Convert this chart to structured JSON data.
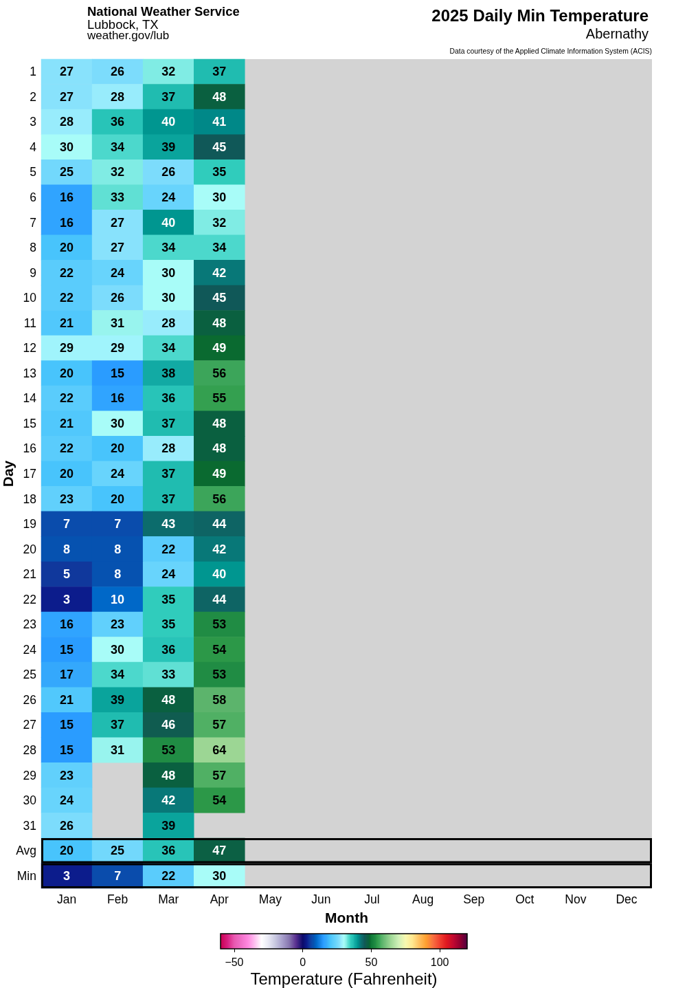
{
  "chart_data": {
    "type": "heatmap",
    "title": "2025 Daily Min Temperature",
    "subtitle": "Abernathy",
    "annotations": [
      "National Weather Service",
      "Lubbock, TX",
      "weather.gov/lub",
      "Data courtesy of the Applied Climate Information System (ACIS)"
    ],
    "xlabel": "Month",
    "ylabel": "Day",
    "clabel": "Temperature (Fahrenheit)",
    "categories": [
      "Jan",
      "Feb",
      "Mar",
      "Apr",
      "May",
      "Jun",
      "Jul",
      "Aug",
      "Sep",
      "Oct",
      "Nov",
      "Dec"
    ],
    "y_categories": [
      "1",
      "2",
      "3",
      "4",
      "5",
      "6",
      "7",
      "8",
      "9",
      "10",
      "11",
      "12",
      "13",
      "14",
      "15",
      "16",
      "17",
      "18",
      "19",
      "20",
      "21",
      "22",
      "23",
      "24",
      "25",
      "26",
      "27",
      "28",
      "29",
      "30",
      "31",
      "Avg",
      "Min"
    ],
    "cells": [
      [
        27,
        26,
        32,
        37,
        null,
        null,
        null,
        null,
        null,
        null,
        null,
        null
      ],
      [
        27,
        28,
        37,
        48,
        null,
        null,
        null,
        null,
        null,
        null,
        null,
        null
      ],
      [
        28,
        36,
        40,
        41,
        null,
        null,
        null,
        null,
        null,
        null,
        null,
        null
      ],
      [
        30,
        34,
        39,
        45,
        null,
        null,
        null,
        null,
        null,
        null,
        null,
        null
      ],
      [
        25,
        32,
        26,
        35,
        null,
        null,
        null,
        null,
        null,
        null,
        null,
        null
      ],
      [
        16,
        33,
        24,
        30,
        null,
        null,
        null,
        null,
        null,
        null,
        null,
        null
      ],
      [
        16,
        27,
        40,
        32,
        null,
        null,
        null,
        null,
        null,
        null,
        null,
        null
      ],
      [
        20,
        27,
        34,
        34,
        null,
        null,
        null,
        null,
        null,
        null,
        null,
        null
      ],
      [
        22,
        24,
        30,
        42,
        null,
        null,
        null,
        null,
        null,
        null,
        null,
        null
      ],
      [
        22,
        26,
        30,
        45,
        null,
        null,
        null,
        null,
        null,
        null,
        null,
        null
      ],
      [
        21,
        31,
        28,
        48,
        null,
        null,
        null,
        null,
        null,
        null,
        null,
        null
      ],
      [
        29,
        29,
        34,
        49,
        null,
        null,
        null,
        null,
        null,
        null,
        null,
        null
      ],
      [
        20,
        15,
        38,
        56,
        null,
        null,
        null,
        null,
        null,
        null,
        null,
        null
      ],
      [
        22,
        16,
        36,
        55,
        null,
        null,
        null,
        null,
        null,
        null,
        null,
        null
      ],
      [
        21,
        30,
        37,
        48,
        null,
        null,
        null,
        null,
        null,
        null,
        null,
        null
      ],
      [
        22,
        20,
        28,
        48,
        null,
        null,
        null,
        null,
        null,
        null,
        null,
        null
      ],
      [
        20,
        24,
        37,
        49,
        null,
        null,
        null,
        null,
        null,
        null,
        null,
        null
      ],
      [
        23,
        20,
        37,
        56,
        null,
        null,
        null,
        null,
        null,
        null,
        null,
        null
      ],
      [
        7,
        7,
        43,
        44,
        null,
        null,
        null,
        null,
        null,
        null,
        null,
        null
      ],
      [
        8,
        8,
        22,
        42,
        null,
        null,
        null,
        null,
        null,
        null,
        null,
        null
      ],
      [
        5,
        8,
        24,
        40,
        null,
        null,
        null,
        null,
        null,
        null,
        null,
        null
      ],
      [
        3,
        10,
        35,
        44,
        null,
        null,
        null,
        null,
        null,
        null,
        null,
        null
      ],
      [
        16,
        23,
        35,
        53,
        null,
        null,
        null,
        null,
        null,
        null,
        null,
        null
      ],
      [
        15,
        30,
        36,
        54,
        null,
        null,
        null,
        null,
        null,
        null,
        null,
        null
      ],
      [
        17,
        34,
        33,
        53,
        null,
        null,
        null,
        null,
        null,
        null,
        null,
        null
      ],
      [
        21,
        39,
        48,
        58,
        null,
        null,
        null,
        null,
        null,
        null,
        null,
        null
      ],
      [
        15,
        37,
        46,
        57,
        null,
        null,
        null,
        null,
        null,
        null,
        null,
        null
      ],
      [
        15,
        31,
        53,
        64,
        null,
        null,
        null,
        null,
        null,
        null,
        null,
        null
      ],
      [
        23,
        null,
        48,
        57,
        null,
        null,
        null,
        null,
        null,
        null,
        null,
        null
      ],
      [
        24,
        null,
        42,
        54,
        null,
        null,
        null,
        null,
        null,
        null,
        null,
        null
      ],
      [
        26,
        null,
        39,
        null,
        null,
        null,
        null,
        null,
        null,
        null,
        null,
        null
      ],
      [
        20,
        25,
        36,
        47,
        null,
        null,
        null,
        null,
        null,
        null,
        null,
        null
      ],
      [
        3,
        7,
        22,
        30,
        null,
        null,
        null,
        null,
        null,
        null,
        null,
        null
      ]
    ],
    "clim": [
      -60,
      120
    ],
    "cticks": [
      {
        "value": -50,
        "label": "−50"
      },
      0,
      50,
      100
    ],
    "data_labels": true
  }
}
